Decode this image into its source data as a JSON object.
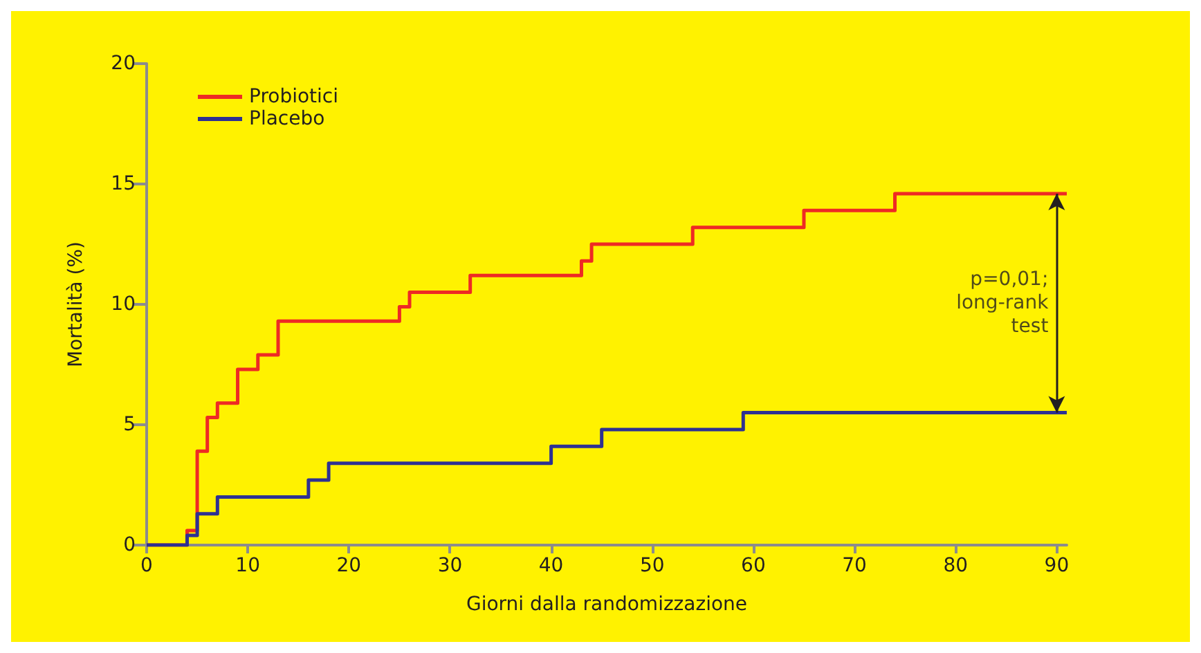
{
  "chart_data": {
    "type": "step",
    "xlabel": "Giorni dalla randomizzazione",
    "ylabel": "Mortalità (%)",
    "xlim": [
      0,
      91
    ],
    "xticks": [
      0,
      10,
      20,
      30,
      40,
      50,
      60,
      70,
      80,
      90
    ],
    "ylim": [
      0,
      20
    ],
    "yticks": [
      0,
      5,
      10,
      15,
      20
    ],
    "grid": false,
    "legend": "top left",
    "marker": "none",
    "line_style": "solid",
    "series": [
      {
        "name": "Probiotici",
        "color": "#ee2a24",
        "x": [
          0,
          4,
          5,
          6,
          7,
          9,
          11,
          13,
          25,
          26,
          32,
          43,
          44,
          54,
          65,
          74,
          91
        ],
        "values": [
          0,
          0.6,
          3.9,
          5.3,
          5.9,
          7.3,
          7.9,
          9.3,
          9.9,
          10.5,
          11.2,
          11.8,
          12.5,
          13.2,
          13.9,
          14.6,
          14.6
        ]
      },
      {
        "name": "Placebo",
        "color": "#2e3192",
        "x": [
          0,
          4,
          5,
          7,
          16,
          18,
          40,
          45,
          59,
          91
        ],
        "values": [
          0,
          0.4,
          1.3,
          2.0,
          2.7,
          3.4,
          4.1,
          4.8,
          5.5,
          5.5
        ]
      }
    ],
    "annotations": [
      "p=0,01;\nlong-rank\ntest"
    ]
  }
}
